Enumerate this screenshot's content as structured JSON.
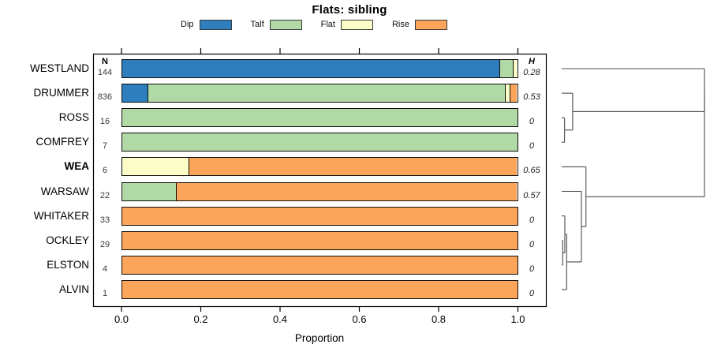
{
  "title": "Flats: sibling",
  "xlabel": "Proportion",
  "columns": {
    "n_header": "N",
    "h_header": "H"
  },
  "legend": [
    {
      "label": "Dip",
      "color": "#2e7ebd"
    },
    {
      "label": "Talf",
      "color": "#b0d9a5"
    },
    {
      "label": "Flat",
      "color": "#fcfcc6"
    },
    {
      "label": "Rise",
      "color": "#fba55a"
    }
  ],
  "chart_data": {
    "type": "bar",
    "stacked": true,
    "orientation": "horizontal",
    "title": "Flats: sibling",
    "xlabel": "Proportion",
    "xlim": [
      0,
      1
    ],
    "x_ticks": [
      "0.0",
      "0.2",
      "0.4",
      "0.6",
      "0.8",
      "1.0"
    ],
    "x_tick_values": [
      0.0,
      0.2,
      0.4,
      0.6,
      0.8,
      1.0
    ],
    "series_names": [
      "Dip",
      "Talf",
      "Flat",
      "Rise"
    ],
    "legend_position": "top",
    "rows": [
      {
        "label": "WESTLAND",
        "bold": false,
        "n": 144,
        "h": "0.28",
        "values": [
          0.955,
          0.035,
          0.01,
          0
        ]
      },
      {
        "label": "DRUMMER",
        "bold": false,
        "n": 836,
        "h": "0.53",
        "values": [
          0.064,
          0.905,
          0.012,
          0.019
        ]
      },
      {
        "label": "ROSS",
        "bold": false,
        "n": 16,
        "h": "0",
        "values": [
          0,
          1,
          0,
          0
        ]
      },
      {
        "label": "COMFREY",
        "bold": false,
        "n": 7,
        "h": "0",
        "values": [
          0,
          1,
          0,
          0
        ]
      },
      {
        "label": "WEA",
        "bold": true,
        "n": 6,
        "h": "0.65",
        "values": [
          0,
          0,
          0.167,
          0.833
        ]
      },
      {
        "label": "WARSAW",
        "bold": false,
        "n": 22,
        "h": "0.57",
        "values": [
          0,
          0.136,
          0,
          0.864
        ]
      },
      {
        "label": "WHITAKER",
        "bold": false,
        "n": 33,
        "h": "0",
        "values": [
          0,
          0,
          0,
          1
        ]
      },
      {
        "label": "OCKLEY",
        "bold": false,
        "n": 29,
        "h": "0",
        "values": [
          0,
          0,
          0,
          1
        ]
      },
      {
        "label": "ELSTON",
        "bold": false,
        "n": 4,
        "h": "0",
        "values": [
          0,
          0,
          0,
          1
        ]
      },
      {
        "label": "ALVIN",
        "bold": false,
        "n": 1,
        "h": "0",
        "values": [
          0,
          0,
          0,
          1
        ]
      }
    ],
    "dendrogram": {
      "side": "right",
      "merges": [
        {
          "id": "rc",
          "a": "ROSS",
          "b": "COMFREY",
          "height": 0.02
        },
        {
          "id": "drc",
          "a": "DRUMMER",
          "b": "rc",
          "height": 0.077
        },
        {
          "id": "oe",
          "a": "OCKLEY",
          "b": "ELSTON",
          "height": 0.007
        },
        {
          "id": "woe",
          "a": "WHITAKER",
          "b": "oe",
          "height": 0.022
        },
        {
          "id": "woea",
          "a": "woe",
          "b": "ALVIN",
          "height": 0.035
        },
        {
          "id": "war5",
          "a": "WARSAW",
          "b": "woea",
          "height": 0.138
        },
        {
          "id": "wea6",
          "a": "WEA",
          "b": "war5",
          "height": 0.17
        },
        {
          "id": "top4",
          "a": "WESTLAND",
          "b": "drc",
          "height": 1.0
        },
        {
          "id": "root",
          "a": "top4",
          "b": "wea6",
          "height": 1.0
        }
      ]
    }
  }
}
